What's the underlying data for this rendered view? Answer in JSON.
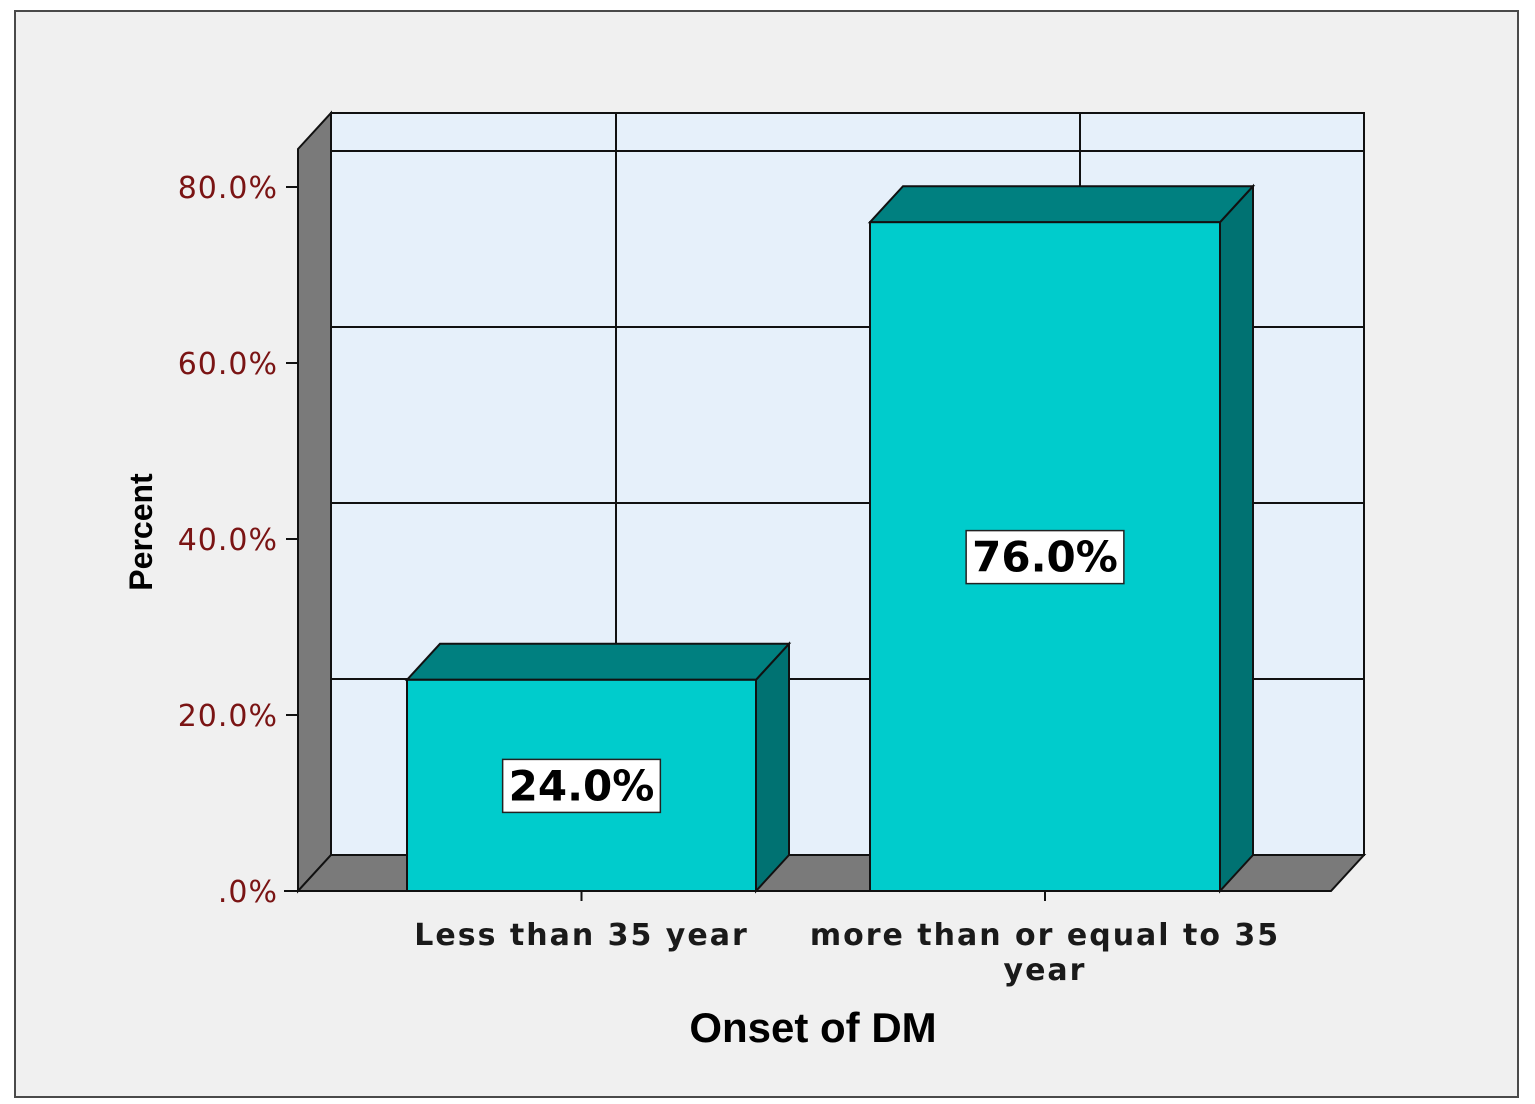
{
  "chart_data": {
    "type": "bar",
    "style": "3d",
    "categories": [
      [
        "Less than  35 year"
      ],
      [
        "more than or equal to 35",
        "year"
      ]
    ],
    "values": [
      24.0,
      76.0
    ],
    "data_labels": [
      "24.0%",
      "76.0%"
    ],
    "xlabel": "Onset of DM",
    "ylabel": "Percent",
    "ylim": [
      0,
      80
    ],
    "y_ticks": [
      0,
      20,
      40,
      60,
      80
    ],
    "y_tick_labels": [
      ".0%",
      "20.0%",
      "40.0%",
      "60.0%",
      "80.0%"
    ],
    "grid": true,
    "legend": "none",
    "colors": {
      "bar_front": "#00cccc",
      "bar_top": "#008080",
      "bar_side": "#007272",
      "plot_back": "#e6f0fa",
      "wall": "#7a7a7a",
      "frame_bg": "#f0f0f0",
      "tick_label": "#7a1414"
    }
  }
}
